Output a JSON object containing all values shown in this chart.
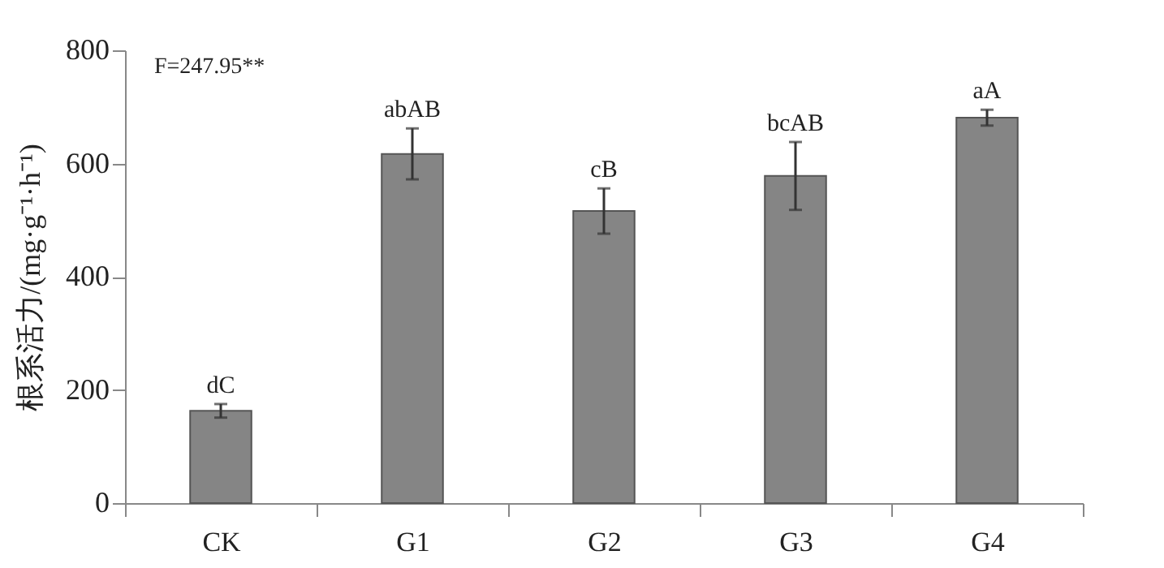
{
  "chart_data": {
    "type": "bar",
    "ylabel": "根系活力/(mg·g⁻¹·h⁻¹)",
    "categories": [
      "CK",
      "G1",
      "G2",
      "G3",
      "G4"
    ],
    "values": [
      163,
      617,
      516,
      578,
      681
    ],
    "errors": [
      12,
      45,
      40,
      60,
      14
    ],
    "color": "#858585",
    "ylim": [
      0,
      800
    ],
    "yticks": [
      0,
      200,
      400,
      600,
      800
    ],
    "grid": false,
    "annotations": [
      "F=247.95**",
      {
        "text": "dC",
        "x": "CK",
        "y": 175
      },
      {
        "text": "abAB",
        "x": "G1",
        "y": 662
      },
      {
        "text": "cB",
        "x": "G2",
        "y": 556
      },
      {
        "text": "bcAB",
        "x": "G3",
        "y": 638
      },
      {
        "text": "aA",
        "x": "G4",
        "y": 695
      }
    ]
  }
}
